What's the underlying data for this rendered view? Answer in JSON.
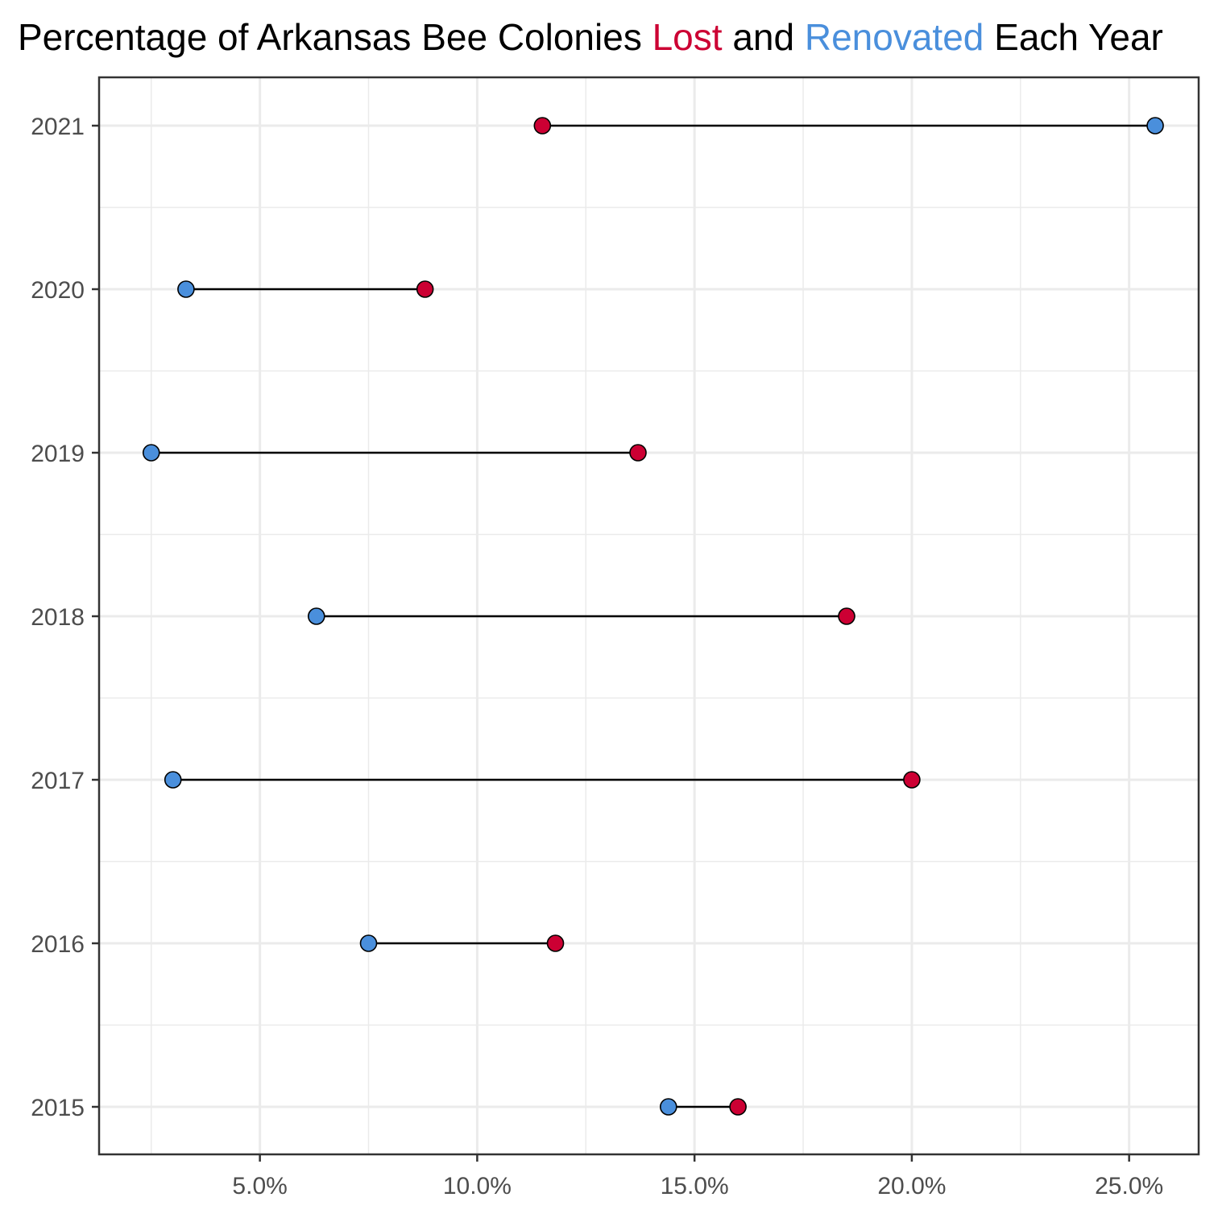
{
  "chart_data": {
    "type": "dumbbell",
    "title_parts": [
      {
        "text": "Percentage of Arkansas Bee Colonies ",
        "color": "#000000"
      },
      {
        "text": "Lost",
        "color": "#cc0033"
      },
      {
        "text": " and ",
        "color": "#000000"
      },
      {
        "text": "Renovated",
        "color": "#4a8fdc"
      },
      {
        "text": " Each Year",
        "color": "#000000"
      }
    ],
    "xlabel": "",
    "ylabel": "",
    "xlim": [
      1.3,
      26.6
    ],
    "x_ticks": [
      5,
      10,
      15,
      20,
      25
    ],
    "x_tick_labels": [
      "5.0%",
      "10.0%",
      "15.0%",
      "20.0%",
      "25.0%"
    ],
    "categories": [
      "2015",
      "2016",
      "2017",
      "2018",
      "2019",
      "2020",
      "2021"
    ],
    "series": [
      {
        "key": "lost",
        "color": "#cc0033",
        "values": [
          16.0,
          11.8,
          20.0,
          18.5,
          13.7,
          8.8,
          11.5
        ]
      },
      {
        "key": "renovated",
        "color": "#4a8fdc",
        "values": [
          14.4,
          7.5,
          3.0,
          6.3,
          2.5,
          3.3,
          25.6
        ]
      }
    ],
    "grid": true,
    "legend": "none"
  }
}
